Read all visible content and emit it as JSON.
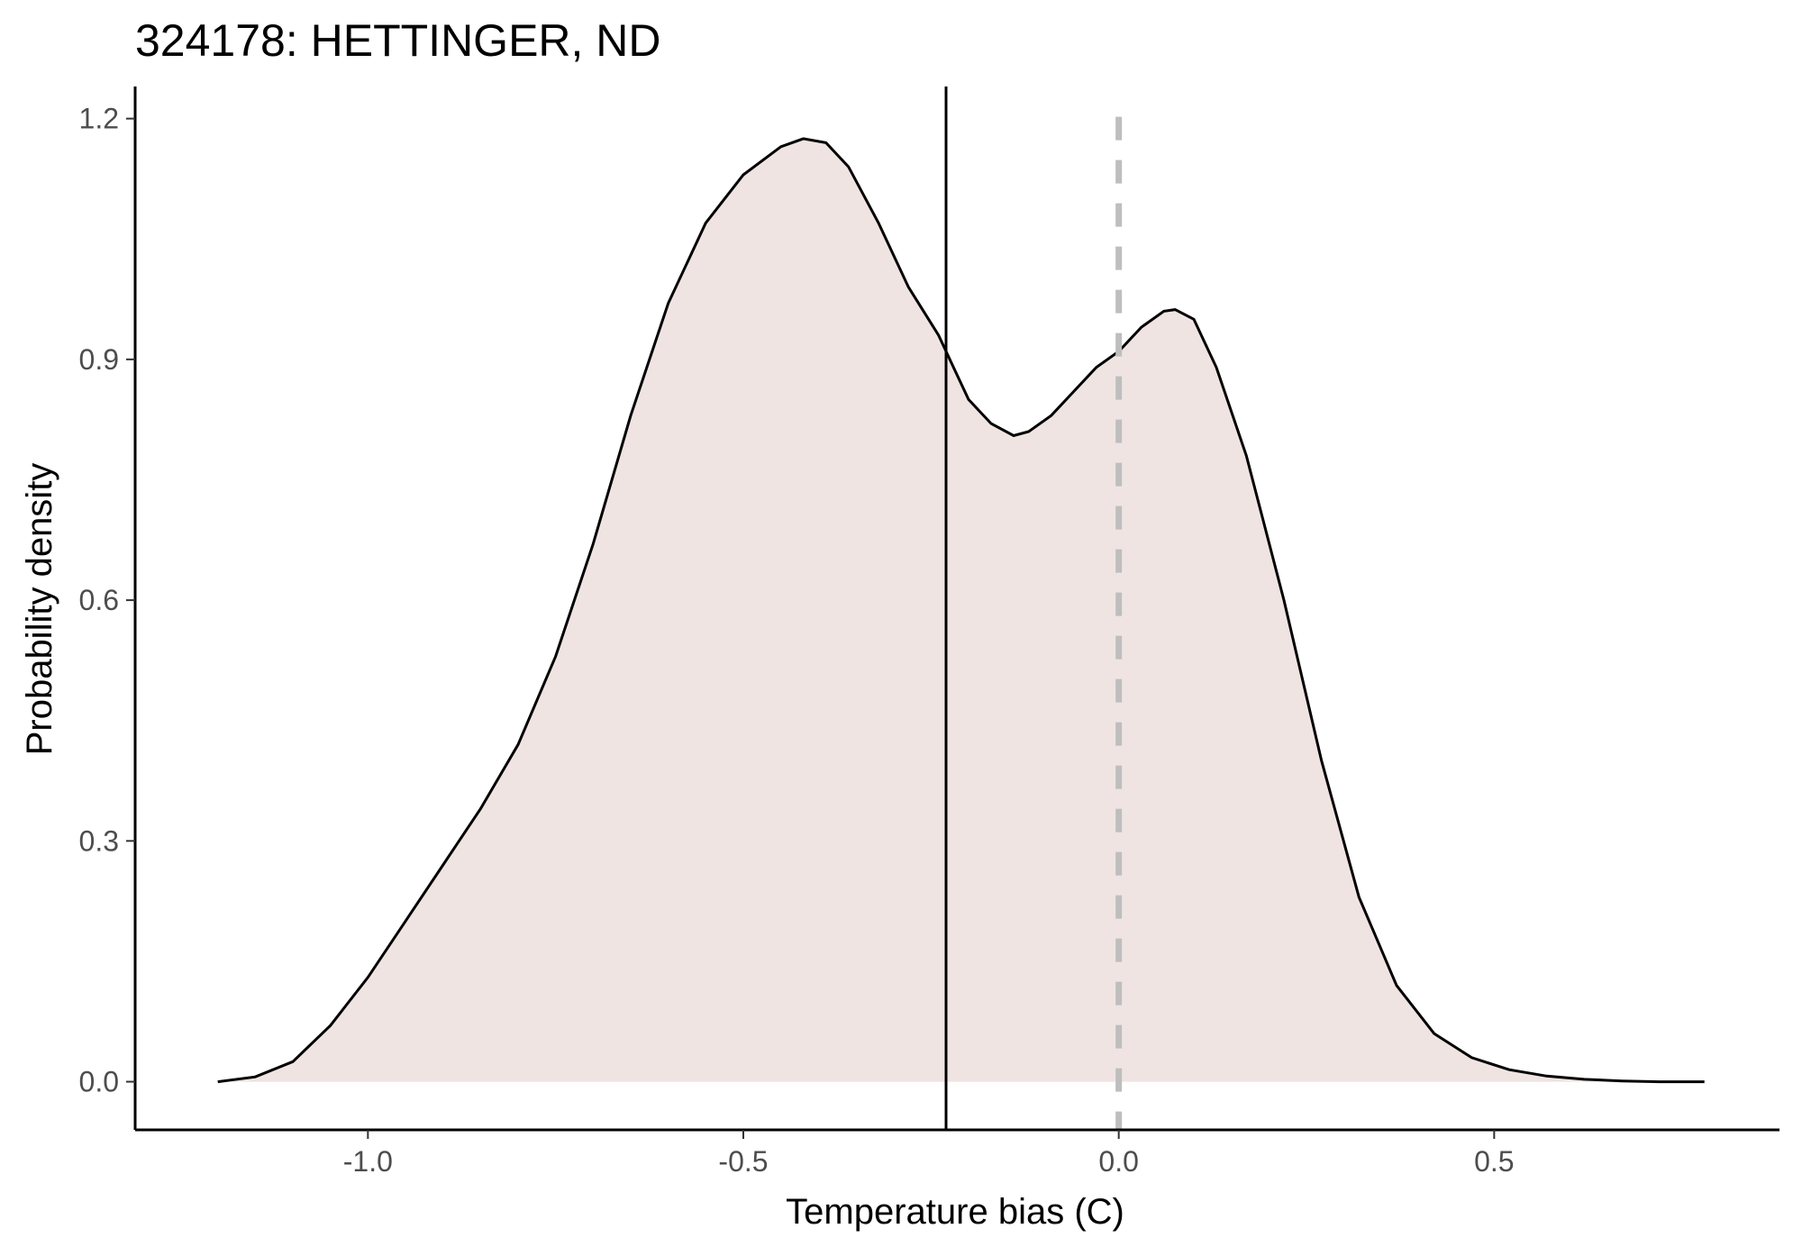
{
  "chart_data": {
    "type": "area",
    "title": "324178: HETTINGER, ND",
    "xlabel": "Temperature bias (C)",
    "ylabel": "Probability density",
    "xlim": [
      -1.31,
      0.88
    ],
    "ylim": [
      -0.06,
      1.24
    ],
    "x_ticks": [
      -1.0,
      -0.5,
      0.0,
      0.5
    ],
    "x_tick_labels": [
      "-1.0",
      "-0.5",
      "0.0",
      "0.5"
    ],
    "y_ticks": [
      0.0,
      0.3,
      0.6,
      0.9,
      1.2
    ],
    "y_tick_labels": [
      "0.0",
      "0.3",
      "0.6",
      "0.9",
      "1.2"
    ],
    "grid": false,
    "legend": "none",
    "series": [
      {
        "x": [
          -1.2,
          -1.15,
          -1.1,
          -1.05,
          -1.0,
          -0.95,
          -0.9,
          -0.85,
          -0.8,
          -0.75,
          -0.7,
          -0.65,
          -0.6,
          -0.55,
          -0.5,
          -0.45,
          -0.42,
          -0.39,
          -0.36,
          -0.32,
          -0.28,
          -0.24,
          -0.22,
          -0.2,
          -0.17,
          -0.14,
          -0.12,
          -0.09,
          -0.06,
          -0.03,
          0.0,
          0.03,
          0.06,
          0.075,
          0.1,
          0.13,
          0.17,
          0.22,
          0.27,
          0.32,
          0.37,
          0.42,
          0.47,
          0.52,
          0.57,
          0.62,
          0.67,
          0.72,
          0.78
        ],
        "y": [
          0.0,
          0.006,
          0.025,
          0.07,
          0.13,
          0.2,
          0.27,
          0.34,
          0.42,
          0.53,
          0.67,
          0.83,
          0.97,
          1.07,
          1.13,
          1.165,
          1.175,
          1.17,
          1.14,
          1.07,
          0.99,
          0.93,
          0.89,
          0.85,
          0.82,
          0.805,
          0.81,
          0.83,
          0.86,
          0.89,
          0.91,
          0.94,
          0.96,
          0.962,
          0.95,
          0.89,
          0.78,
          0.6,
          0.4,
          0.23,
          0.12,
          0.06,
          0.03,
          0.015,
          0.007,
          0.003,
          0.001,
          0.0,
          0.0
        ],
        "fill": "#efe4e2",
        "line_color": "#000000"
      }
    ],
    "reference_lines": [
      {
        "x": -0.23,
        "style": "solid",
        "color": "#000000"
      },
      {
        "x": 0.0,
        "style": "dashed",
        "color": "#bebebe"
      }
    ]
  }
}
